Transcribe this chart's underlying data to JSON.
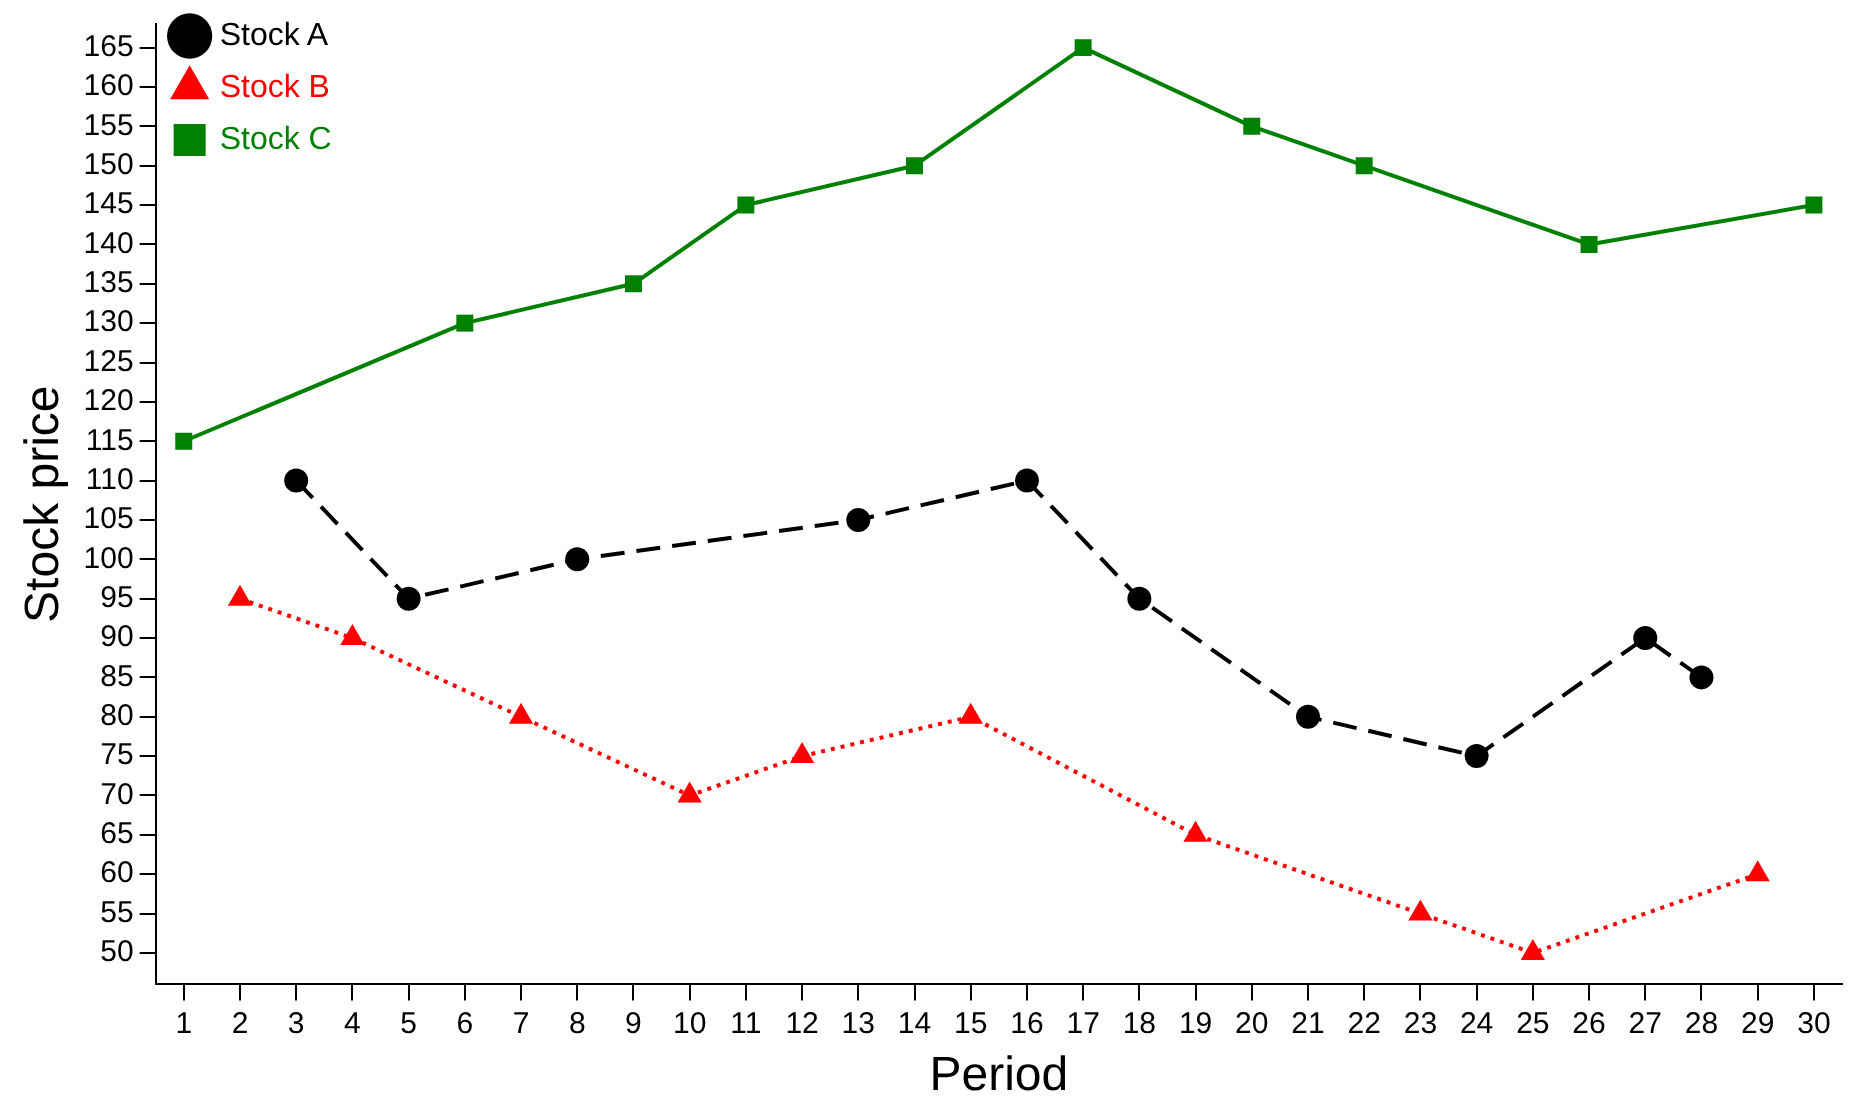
{
  "chart_data": {
    "type": "line",
    "xlabel": "Period",
    "ylabel": "Stock price",
    "xlim": [
      0.5,
      30.5
    ],
    "xticks": [
      1,
      2,
      3,
      4,
      5,
      6,
      7,
      8,
      9,
      10,
      11,
      12,
      13,
      14,
      15,
      16,
      17,
      18,
      19,
      20,
      21,
      22,
      23,
      24,
      25,
      26,
      27,
      28,
      29,
      30
    ],
    "ylim": [
      46,
      168
    ],
    "yticks": [
      50,
      55,
      60,
      65,
      70,
      75,
      80,
      85,
      90,
      95,
      100,
      105,
      110,
      115,
      120,
      125,
      130,
      135,
      140,
      145,
      150,
      155,
      160,
      165
    ],
    "grid": false,
    "legend": "top left",
    "series": [
      {
        "name": "Stock A",
        "color": "#000000",
        "marker": "circle",
        "line_style": "dashed",
        "x": [
          3,
          5,
          8,
          13,
          16,
          18,
          21,
          24,
          27,
          28
        ],
        "values": [
          110,
          95,
          100,
          105,
          110,
          95,
          80,
          75,
          90,
          85
        ]
      },
      {
        "name": "Stock B",
        "color": "#ff0000",
        "marker": "triangle",
        "line_style": "dotted",
        "x": [
          2,
          4,
          7,
          10,
          12,
          15,
          19,
          23,
          25,
          29
        ],
        "values": [
          95,
          90,
          80,
          70,
          75,
          80,
          65,
          55,
          50,
          60
        ]
      },
      {
        "name": "Stock C",
        "color": "#008000",
        "marker": "square",
        "line_style": "solid",
        "x": [
          1,
          6,
          9,
          11,
          14,
          17,
          20,
          22,
          26,
          30
        ],
        "values": [
          115,
          130,
          135,
          145,
          150,
          165,
          155,
          150,
          140,
          145
        ]
      }
    ]
  }
}
